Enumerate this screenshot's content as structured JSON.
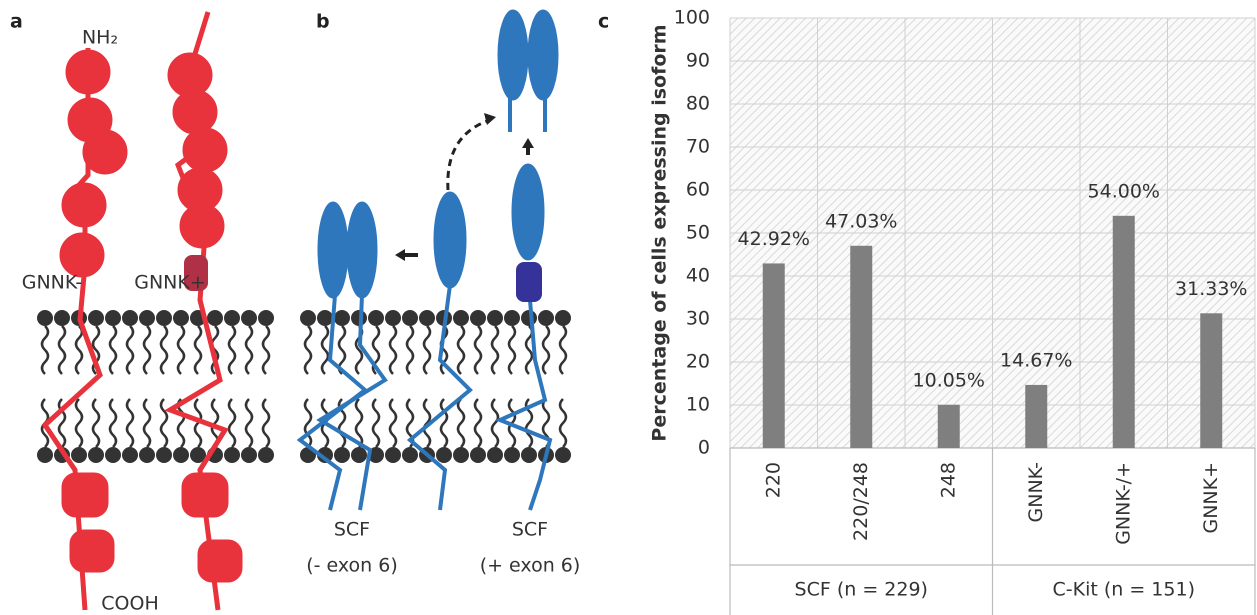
{
  "panels": {
    "a": "a",
    "b": "b",
    "c": "c"
  },
  "diagram_a": {
    "top": "NH₂",
    "bottom": "COOH",
    "left": "GNNK-",
    "right": "GNNK+"
  },
  "diagram_b": {
    "left_name": "SCF",
    "left_note": "(- exon 6)",
    "right_name": "SCF",
    "right_note": "(+ exon 6)"
  },
  "chart_data": {
    "type": "bar",
    "y_label": "Percentage of cells expressing isoform",
    "categories": [
      "220",
      "220/248",
      "248",
      "GNNK-",
      "GNNK-/+",
      "GNNK+"
    ],
    "groups": [
      "SCF (n = 229)",
      "C-Kit (n = 151)"
    ],
    "values": [
      42.92,
      47.03,
      10.05,
      14.67,
      54.0,
      31.33
    ],
    "value_labels": [
      "42.92%",
      "47.03%",
      "10.05%",
      "14.67%",
      "54.00%",
      "31.33%"
    ],
    "color": "#7f7f7f",
    "ylim": [
      0,
      100
    ],
    "yticks": [
      0,
      10,
      20,
      30,
      40,
      50,
      60,
      70,
      80,
      90,
      100
    ],
    "grid": true
  }
}
